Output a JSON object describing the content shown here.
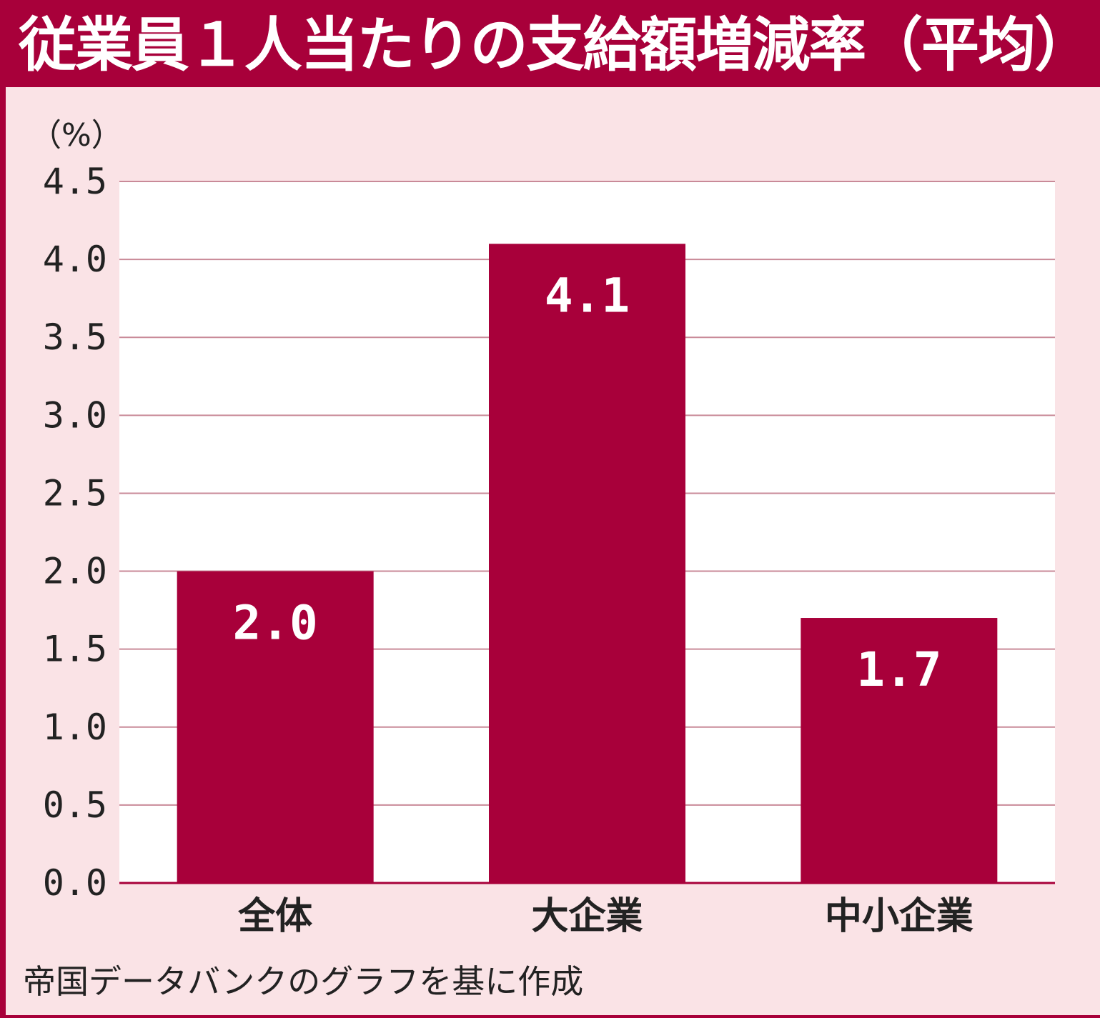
{
  "title": "従業員１人当たりの支給額増減率（平均）",
  "source": "帝国データバンクのグラフを基に作成",
  "colors": {
    "accent": "#a8003a",
    "panel_background": "#fae3e6",
    "plot_background": "#ffffff",
    "gridline": "#c98a98",
    "text": "#222222",
    "value_text": "#ffffff"
  },
  "chart_data": {
    "type": "bar",
    "title": "従業員１人当たりの支給額増減率（平均）",
    "ylabel": "（%）",
    "xlabel": "",
    "categories": [
      "全体",
      "大企業",
      "中小企業"
    ],
    "values": [
      2.0,
      4.1,
      1.7
    ],
    "value_labels": [
      "2.0",
      "4.1",
      "1.7"
    ],
    "ylim": [
      0,
      4.5
    ],
    "yticks": [
      0.0,
      0.5,
      1.0,
      1.5,
      2.0,
      2.5,
      3.0,
      3.5,
      4.0,
      4.5
    ],
    "ytick_labels": [
      "0.0",
      "0.5",
      "1.0",
      "1.5",
      "2.0",
      "2.5",
      "3.0",
      "3.5",
      "4.0",
      "4.5"
    ],
    "grid": true,
    "legend": "none"
  }
}
